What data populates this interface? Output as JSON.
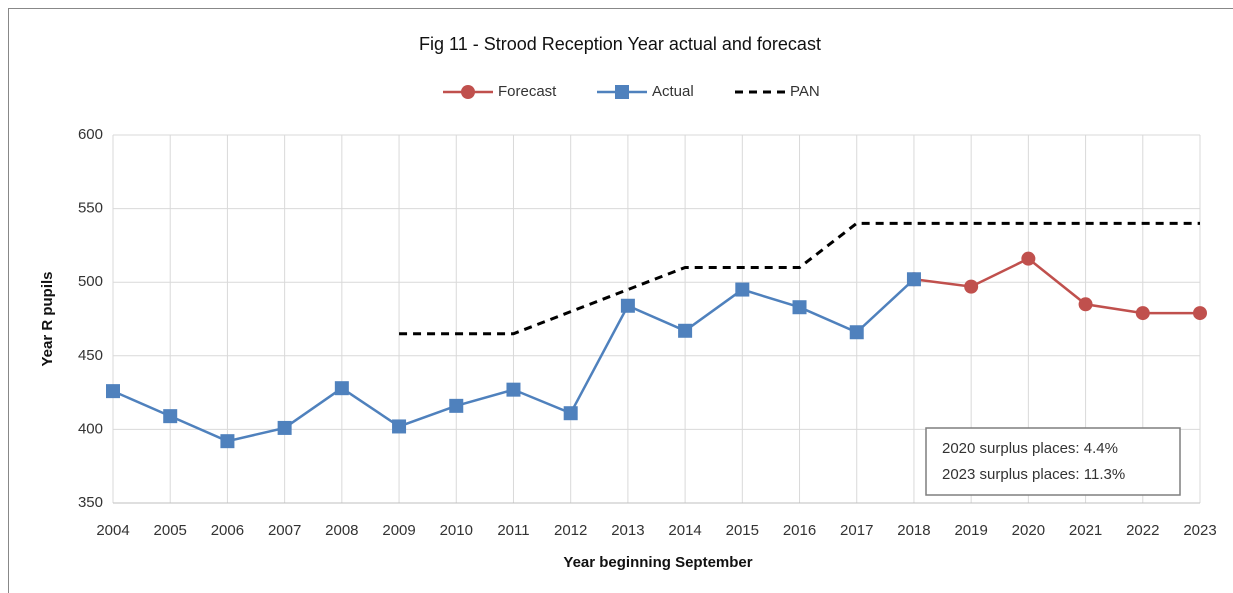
{
  "chart_data": {
    "type": "line",
    "title": "Fig 11 - Strood Reception Year actual and forecast",
    "x_label": "Year beginning September",
    "y_label": "Year R pupils",
    "categories": [
      "2004",
      "2005",
      "2006",
      "2007",
      "2008",
      "2009",
      "2010",
      "2011",
      "2012",
      "2013",
      "2014",
      "2015",
      "2016",
      "2017",
      "2018",
      "2019",
      "2020",
      "2021",
      "2022",
      "2023"
    ],
    "series": [
      {
        "name": "Forecast",
        "color": "#c0504d",
        "marker": "circle",
        "dashed": false,
        "values": [
          null,
          null,
          null,
          null,
          null,
          null,
          null,
          null,
          null,
          null,
          null,
          null,
          null,
          null,
          502,
          497,
          516,
          485,
          479,
          479
        ]
      },
      {
        "name": "Actual",
        "color": "#4f81bd",
        "marker": "square",
        "dashed": false,
        "values": [
          426,
          409,
          392,
          401,
          428,
          402,
          416,
          427,
          411,
          484,
          467,
          495,
          483,
          466,
          502,
          null,
          null,
          null,
          null,
          null
        ]
      },
      {
        "name": "PAN",
        "color": "#000000",
        "marker": "none",
        "dashed": true,
        "values": [
          null,
          null,
          null,
          null,
          null,
          465,
          465,
          465,
          480,
          495,
          510,
          510,
          510,
          540,
          540,
          540,
          540,
          540,
          540,
          540
        ]
      }
    ],
    "ylim": [
      350,
      600
    ],
    "yticks": [
      350,
      400,
      450,
      500,
      550,
      600
    ],
    "grid": true,
    "legend": "top",
    "annotations": [
      "2020 surplus places: 4.4%",
      "2023 surplus places: 11.3%"
    ]
  }
}
